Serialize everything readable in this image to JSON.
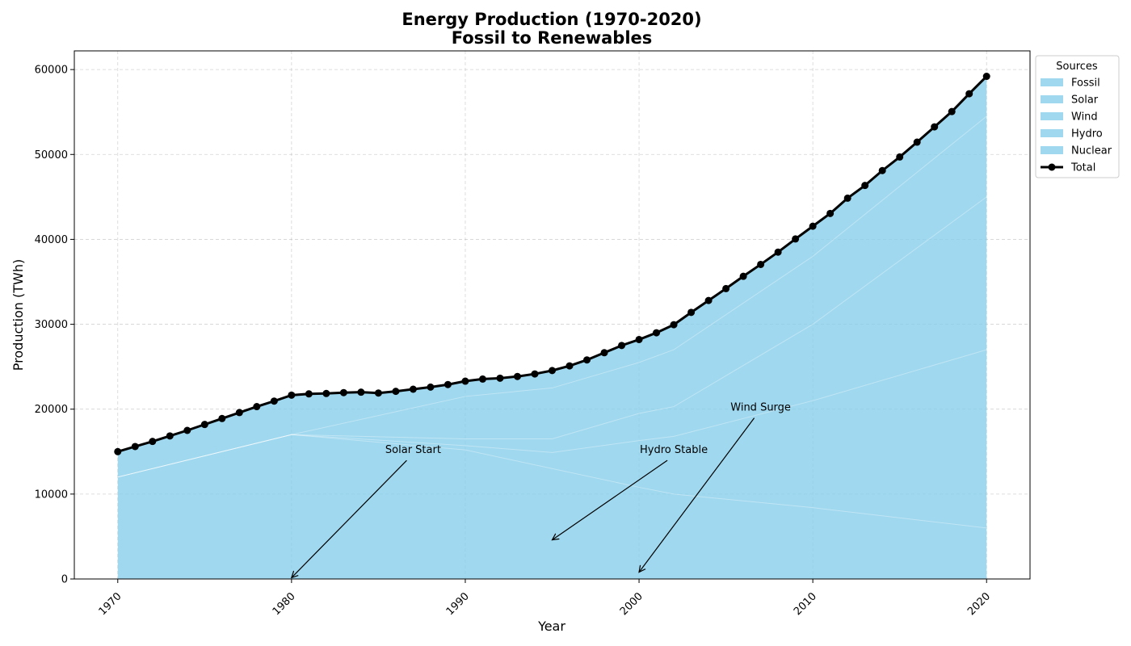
{
  "chart_data": {
    "type": "area",
    "title": [
      "Energy Production (1970-2020)",
      "Fossil to Renewables"
    ],
    "xlabel": "Year",
    "ylabel": "Production (TWh)",
    "xlim": [
      1967.5,
      2022.5
    ],
    "ylim": [
      0,
      62200
    ],
    "xticks": [
      1970,
      1980,
      1990,
      2000,
      2010,
      2020
    ],
    "yticks": [
      0,
      10000,
      20000,
      30000,
      40000,
      50000,
      60000
    ],
    "grid": true,
    "stacked": true,
    "area_color": "#87ceeb",
    "area_alpha": 0.8,
    "legend": {
      "title": "Sources",
      "position": "outside-top-right"
    },
    "x": [
      1970,
      1971,
      1972,
      1973,
      1974,
      1975,
      1976,
      1977,
      1978,
      1979,
      1980,
      1981,
      1982,
      1983,
      1984,
      1985,
      1986,
      1987,
      1988,
      1989,
      1990,
      1991,
      1992,
      1993,
      1994,
      1995,
      1996,
      1997,
      1998,
      1999,
      2000,
      2001,
      2002,
      2003,
      2004,
      2005,
      2006,
      2007,
      2008,
      2009,
      2010,
      2011,
      2012,
      2013,
      2014,
      2015,
      2016,
      2017,
      2018,
      2019,
      2020
    ],
    "stack_boundaries": [
      {
        "label": "Fossil top",
        "points": [
          [
            1970,
            12000
          ],
          [
            1980,
            17000
          ],
          [
            1990,
            15200
          ],
          [
            2000,
            10800
          ],
          [
            2002,
            10000
          ],
          [
            2010,
            8400
          ],
          [
            2020,
            6000
          ]
        ]
      },
      {
        "label": "Solar top",
        "points": [
          [
            1970,
            12000
          ],
          [
            1980,
            17000
          ],
          [
            1990,
            15700
          ],
          [
            1995,
            14900
          ],
          [
            2000,
            16300
          ],
          [
            2002,
            16800
          ],
          [
            2010,
            21000
          ],
          [
            2020,
            27000
          ]
        ]
      },
      {
        "label": "Wind top",
        "points": [
          [
            1970,
            12000
          ],
          [
            1980,
            17000
          ],
          [
            1990,
            16500
          ],
          [
            1995,
            16500
          ],
          [
            2000,
            19500
          ],
          [
            2002,
            20300
          ],
          [
            2010,
            30000
          ],
          [
            2020,
            45000
          ]
        ]
      },
      {
        "label": "Hydro top",
        "points": [
          [
            1970,
            12000
          ],
          [
            1980,
            17000
          ],
          [
            1990,
            21500
          ],
          [
            1995,
            22500
          ],
          [
            2000,
            25500
          ],
          [
            2002,
            27000
          ],
          [
            2010,
            38000
          ],
          [
            2020,
            54500
          ]
        ]
      }
    ],
    "series": [
      {
        "name": "Fossil",
        "kind": "area"
      },
      {
        "name": "Solar",
        "kind": "area"
      },
      {
        "name": "Wind",
        "kind": "area"
      },
      {
        "name": "Hydro",
        "kind": "area"
      },
      {
        "name": "Nuclear",
        "kind": "area"
      },
      {
        "name": "Total",
        "kind": "line",
        "color": "#000000",
        "values": [
          15000,
          15600,
          16200,
          16850,
          17500,
          18200,
          18900,
          19600,
          20300,
          20950,
          21650,
          21800,
          21850,
          21950,
          22000,
          21900,
          22100,
          22350,
          22600,
          22900,
          23300,
          23550,
          23650,
          23850,
          24150,
          24550,
          25100,
          25800,
          26650,
          27500,
          28200,
          29000,
          29950,
          31400,
          32800,
          34200,
          35650,
          37050,
          38500,
          40050,
          41550,
          43050,
          44850,
          46350,
          48100,
          49700,
          51450,
          53250,
          55050,
          57150,
          59200
        ]
      }
    ],
    "annotations": [
      {
        "text": "Solar Start",
        "text_xy": [
          1987,
          15200
        ],
        "arrow_to": [
          1980,
          150
        ]
      },
      {
        "text": "Hydro Stable",
        "text_xy": [
          2002,
          15200
        ],
        "arrow_to": [
          1995,
          4600
        ]
      },
      {
        "text": "Wind Surge",
        "text_xy": [
          2007,
          20200
        ],
        "arrow_to": [
          2000,
          800
        ]
      }
    ]
  }
}
